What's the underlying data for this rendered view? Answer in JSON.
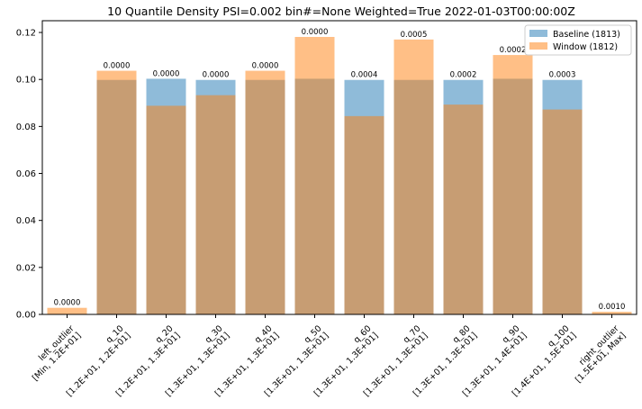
{
  "chart_data": {
    "type": "bar",
    "title": "10 Quantile Density PSI=0.002 bin#=None Weighted=True 2022-01-03T00:00:00Z",
    "xlabel": "",
    "ylabel": "",
    "ylim": [
      0,
      0.125
    ],
    "yticks": [
      "0.00",
      "0.02",
      "0.04",
      "0.06",
      "0.08",
      "0.10",
      "0.12"
    ],
    "yticks_values": [
      0,
      0.02,
      0.04,
      0.06,
      0.08,
      0.1,
      0.12
    ],
    "grid": false,
    "legend_placement": "top-right",
    "categories": [
      [
        "left_outlier",
        "[Min, 1.2E+01]"
      ],
      [
        "q_10",
        "[1.2E+01, 1.2E+01]"
      ],
      [
        "q_20",
        "[1.2E+01, 1.3E+01]"
      ],
      [
        "q_30",
        "[1.3E+01, 1.3E+01]"
      ],
      [
        "q_40",
        "[1.3E+01, 1.3E+01]"
      ],
      [
        "q_50",
        "[1.3E+01, 1.3E+01]"
      ],
      [
        "q_60",
        "[1.3E+01, 1.3E+01]"
      ],
      [
        "q_70",
        "[1.3E+01, 1.3E+01]"
      ],
      [
        "q_80",
        "[1.3E+01, 1.3E+01]"
      ],
      [
        "q_90",
        "[1.3E+01, 1.4E+01]"
      ],
      [
        "q_100",
        "[1.4E+01, 1.5E+01]"
      ],
      [
        "right_outlier",
        "[1.5E+01, Max]"
      ]
    ],
    "series": [
      {
        "name": "Baseline (1813)",
        "color": "#1f77b4",
        "alpha": 0.5,
        "values": [
          0,
          0.0998,
          0.1003,
          0.0998,
          0.0998,
          0.1003,
          0.0998,
          0.0998,
          0.0998,
          0.1003,
          0.0998,
          0
        ]
      },
      {
        "name": "Window (1812)",
        "color": "#ff7f0e",
        "alpha": 0.5,
        "values": [
          0.0028,
          0.1037,
          0.0888,
          0.0933,
          0.1037,
          0.1181,
          0.0844,
          0.117,
          0.0893,
          0.1104,
          0.0872,
          0.0011
        ]
      }
    ],
    "data_labels": [
      "0.0000",
      "0.0000",
      "0.0000",
      "0.0000",
      "0.0000",
      "0.0000",
      "0.0004",
      "0.0005",
      "0.0002",
      "0.0002",
      "0.0003",
      "0.0010"
    ]
  }
}
